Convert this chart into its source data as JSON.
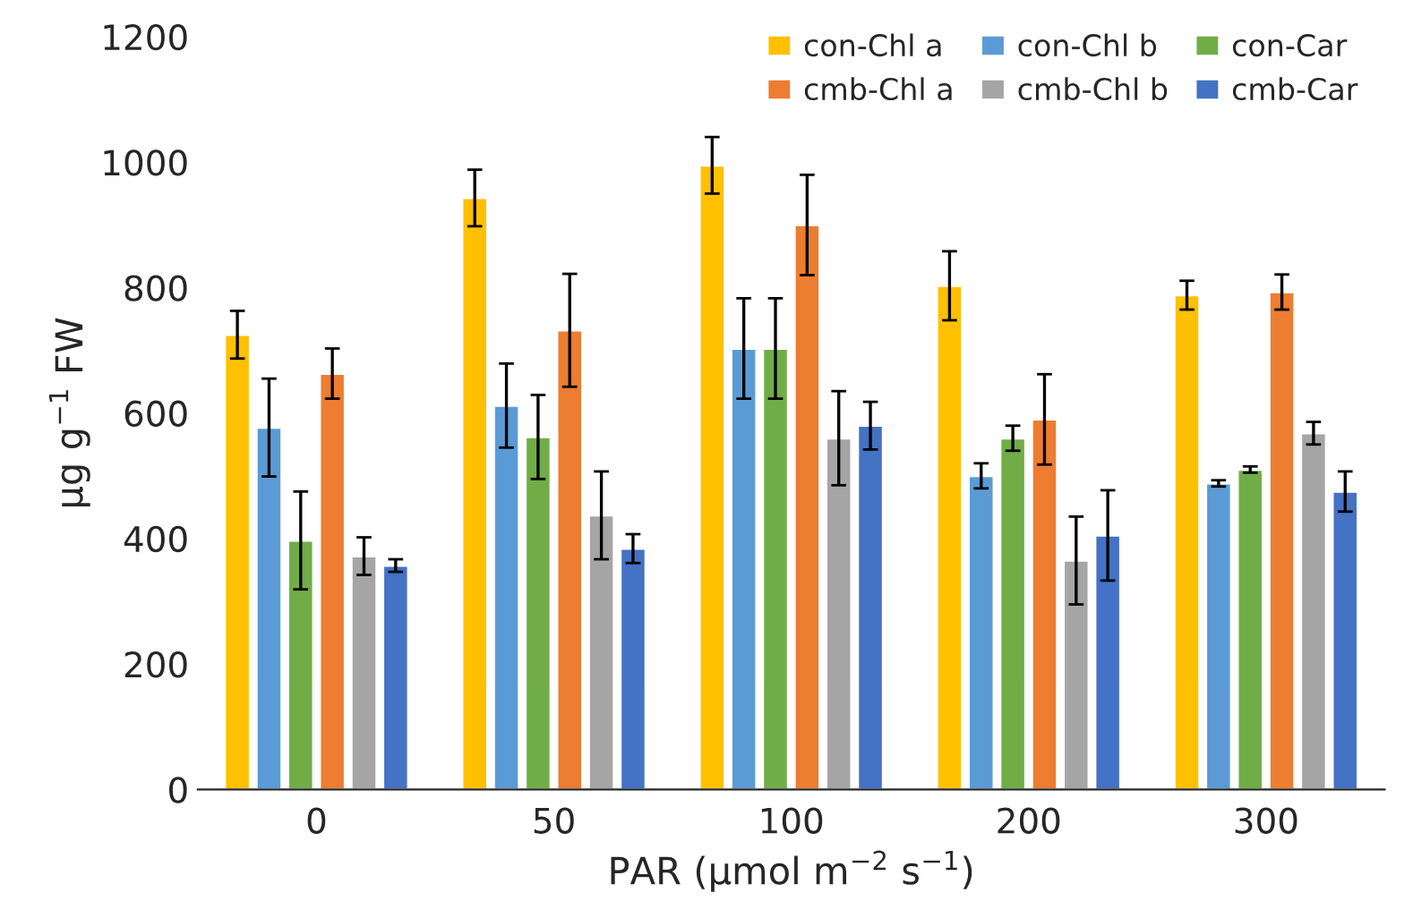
{
  "chart_data": {
    "type": "bar",
    "xlabel": "PAR (μmol m$^{−2}$ s$^{−1}$)",
    "ylabel": "μg g$^{−1}$ FW",
    "categories": [
      "0",
      "50",
      "100",
      "200",
      "300"
    ],
    "series": [
      {
        "name": "con-Chl a",
        "color": "#ffc000",
        "values": [
          725,
          943,
          995,
          803,
          788
        ],
        "errors": [
          38,
          45,
          45,
          55,
          23
        ]
      },
      {
        "name": "con-Chl b",
        "color": "#5b9bd5",
        "values": [
          577,
          612,
          703,
          500,
          488
        ],
        "errors": [
          78,
          67,
          80,
          20,
          5
        ]
      },
      {
        "name": "con-Car",
        "color": "#70ad47",
        "values": [
          397,
          562,
          703,
          560,
          510
        ],
        "errors": [
          78,
          67,
          80,
          20,
          5
        ]
      },
      {
        "name": "cmb-Chl a",
        "color": "#ed7d31",
        "values": [
          663,
          732,
          900,
          590,
          793
        ],
        "errors": [
          40,
          90,
          80,
          72,
          28
        ]
      },
      {
        "name": "cmb-Chl b",
        "color": "#a5a5a5",
        "values": [
          372,
          437,
          560,
          365,
          568
        ],
        "errors": [
          30,
          70,
          75,
          70,
          18
        ]
      },
      {
        "name": "cmb-Car",
        "color": "#4472c4",
        "values": [
          357,
          384,
          580,
          405,
          475
        ],
        "errors": [
          10,
          23,
          38,
          72,
          32
        ]
      }
    ],
    "ylim": [
      0,
      1200
    ],
    "yticks": [
      0,
      200,
      400,
      600,
      800,
      1000,
      1200
    ],
    "grid": false,
    "legend": "top right"
  }
}
